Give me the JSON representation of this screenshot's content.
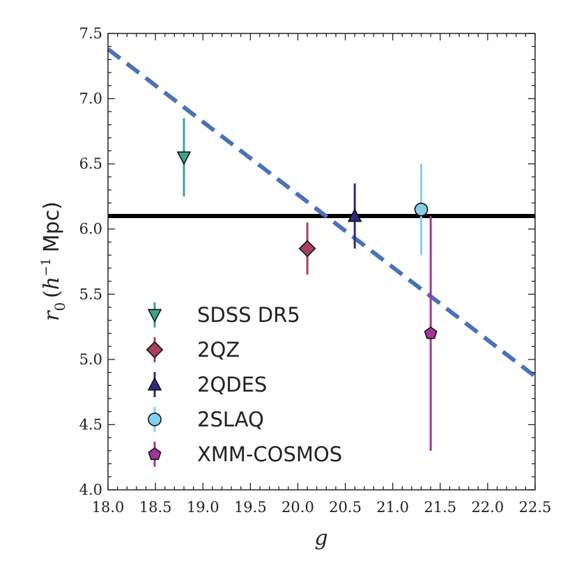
{
  "chart_data": {
    "type": "scatter",
    "title": "",
    "xlabel": "g",
    "ylabel": "r_0 (h^-1 Mpc)",
    "ylabel_parts": {
      "symbol": "r",
      "subscript": "0",
      "open": "(",
      "h": "h",
      "superscript": "−1",
      "unit": "Mpc)"
    },
    "xlim": [
      18.0,
      22.5
    ],
    "ylim": [
      4.0,
      7.5
    ],
    "xticks": [
      "18.0",
      "18.5",
      "19.0",
      "19.5",
      "20.0",
      "20.5",
      "21.0",
      "21.5",
      "22.0",
      "22.5"
    ],
    "yticks": [
      "4.0",
      "4.5",
      "5.0",
      "5.5",
      "6.0",
      "6.5",
      "7.0",
      "7.5"
    ],
    "grid": false,
    "legend_position": "lower-left",
    "series": [
      {
        "name": "SDSS DR5",
        "marker": "triangle-down",
        "color": "#3aa58f",
        "x": 18.8,
        "y": 6.55,
        "yerr_low": 6.25,
        "yerr_high": 6.85
      },
      {
        "name": "2QZ",
        "marker": "diamond",
        "color": "#a8405e",
        "x": 20.1,
        "y": 5.85,
        "yerr_low": 5.65,
        "yerr_high": 6.05
      },
      {
        "name": "2QDES",
        "marker": "triangle-up",
        "color": "#2e2a7f",
        "x": 20.6,
        "y": 6.1,
        "yerr_low": 5.85,
        "yerr_high": 6.35
      },
      {
        "name": "2SLAQ",
        "marker": "circle",
        "color": "#87ceeb",
        "x": 21.3,
        "y": 6.15,
        "yerr_low": 5.8,
        "yerr_high": 6.5
      },
      {
        "name": "XMM-COSMOS",
        "marker": "pentagon",
        "color": "#a2359a",
        "x": 21.4,
        "y": 5.2,
        "yerr_low": 4.3,
        "yerr_high": 6.1
      }
    ],
    "lines": [
      {
        "name": "constant-fit",
        "style": "solid",
        "color": "#000000",
        "y": 6.1
      },
      {
        "name": "linear-fit",
        "style": "dashed",
        "color": "#4a72b8",
        "points": [
          [
            18.0,
            7.38
          ],
          [
            22.5,
            4.87
          ]
        ]
      }
    ]
  }
}
